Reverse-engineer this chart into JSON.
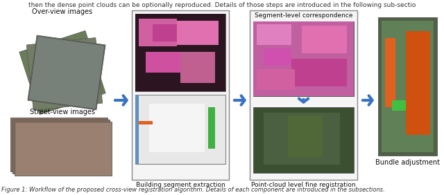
{
  "bg_color": "#ffffff",
  "header_text": "then the dense point clouds can be optionally reproduced. Details of those steps are introduced in the following sub-sectio",
  "header_fontsize": 6.5,
  "header_color": "#333333",
  "footer_text": "Figure 1: Workflow of the proposed cross-view registration algorithm. Details of each component are introduced in the subsections.",
  "footer_fontsize": 6.0,
  "footer_color": "#333333",
  "labels": {
    "overview": "Over-view images",
    "streetview": "Street-view images",
    "building_extraction": "Building segment extraction",
    "segment_correspondence": "Segment-level correspondence",
    "pointcloud_registration": "Point-cloud level fine registration",
    "bundle_adjustment": "Bundle adjustment"
  },
  "arrow_color": "#3a72c4",
  "arrow_lw": 3.0,
  "box_edge_color": "#888888",
  "box_face_color": "#f5f5f5"
}
